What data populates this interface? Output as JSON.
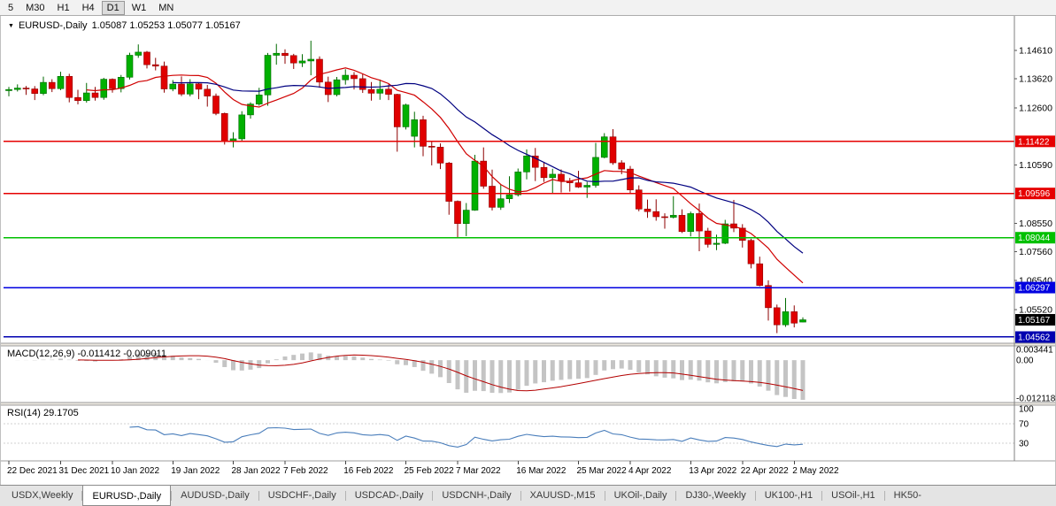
{
  "toolbar": {
    "timeframes": [
      "5",
      "M30",
      "H1",
      "H4",
      "D1",
      "W1",
      "MN"
    ],
    "active": "D1"
  },
  "chart": {
    "title_symbol": "EURUSD-,Daily",
    "title_ohlc": "1.05087 1.05253 1.05077 1.05167"
  },
  "indicators": {
    "macd": {
      "label": "MACD(12,26,9) -0.011412 -0.009011"
    },
    "rsi": {
      "label": "RSI(14) 29.1705"
    }
  },
  "tabs": [
    {
      "label": "USDX,Weekly",
      "active": false
    },
    {
      "label": "EURUSD-,Daily",
      "active": true
    },
    {
      "label": "AUDUSD-,Daily",
      "active": false
    },
    {
      "label": "USDCHF-,Daily",
      "active": false
    },
    {
      "label": "USDCAD-,Daily",
      "active": false
    },
    {
      "label": "USDCNH-,Daily",
      "active": false
    },
    {
      "label": "XAUUSD-,M15",
      "active": false
    },
    {
      "label": "UKOil-,Daily",
      "active": false
    },
    {
      "label": "DJ30-,Weekly",
      "active": false
    },
    {
      "label": "UK100-,H1",
      "active": false
    },
    {
      "label": "USOil-,H1",
      "active": false
    },
    {
      "label": "HK50-",
      "active": false
    }
  ],
  "chart_data": {
    "type": "candlestick",
    "symbol": "EURUSD-,Daily",
    "timeframe": "Daily",
    "ohlc_current": {
      "open": 1.05087,
      "high": 1.05253,
      "low": 1.05077,
      "close": 1.05167
    },
    "candle_colors": {
      "bull": "#00b000",
      "bull_border": "#006a00",
      "bear": "#e00000",
      "bear_border": "#8e0000"
    },
    "candles": [
      [
        1.132,
        1.1333,
        1.13,
        1.1324
      ],
      [
        1.1324,
        1.1342,
        1.1317,
        1.1329
      ],
      [
        1.1329,
        1.1336,
        1.1305,
        1.1326
      ],
      [
        1.1326,
        1.1336,
        1.1287,
        1.131
      ],
      [
        1.131,
        1.1369,
        1.1304,
        1.1349
      ],
      [
        1.1349,
        1.136,
        1.1315,
        1.1327
      ],
      [
        1.1327,
        1.1386,
        1.1322,
        1.137
      ],
      [
        1.137,
        1.1379,
        1.1279,
        1.1296
      ],
      [
        1.1296,
        1.1323,
        1.1272,
        1.1285
      ],
      [
        1.1285,
        1.1347,
        1.1278,
        1.1312
      ],
      [
        1.1312,
        1.1333,
        1.1285,
        1.1296
      ],
      [
        1.1296,
        1.1365,
        1.1288,
        1.136
      ],
      [
        1.136,
        1.1363,
        1.1313,
        1.1327
      ],
      [
        1.1327,
        1.1375,
        1.1314,
        1.1367
      ],
      [
        1.1367,
        1.1453,
        1.1359,
        1.1444
      ],
      [
        1.1444,
        1.1482,
        1.1435,
        1.1455
      ],
      [
        1.1455,
        1.1459,
        1.1398,
        1.1411
      ],
      [
        1.1411,
        1.1435,
        1.1391,
        1.1406
      ],
      [
        1.1406,
        1.1422,
        1.1313,
        1.1326
      ],
      [
        1.1326,
        1.1357,
        1.1318,
        1.1343
      ],
      [
        1.1343,
        1.137,
        1.1301,
        1.1308
      ],
      [
        1.1308,
        1.136,
        1.13,
        1.1344
      ],
      [
        1.1344,
        1.1349,
        1.129,
        1.1325
      ],
      [
        1.1325,
        1.134,
        1.1264,
        1.1301
      ],
      [
        1.1301,
        1.131,
        1.1234,
        1.124
      ],
      [
        1.124,
        1.1243,
        1.1131,
        1.1144
      ],
      [
        1.1144,
        1.1174,
        1.1121,
        1.1151
      ],
      [
        1.1151,
        1.1248,
        1.1141,
        1.1235
      ],
      [
        1.1235,
        1.1279,
        1.1222,
        1.1273
      ],
      [
        1.1273,
        1.133,
        1.1267,
        1.1305
      ],
      [
        1.1305,
        1.1452,
        1.1267,
        1.1444
      ],
      [
        1.1444,
        1.1484,
        1.1411,
        1.1451
      ],
      [
        1.1451,
        1.1465,
        1.1414,
        1.1443
      ],
      [
        1.1443,
        1.1449,
        1.1396,
        1.1417
      ],
      [
        1.1417,
        1.1448,
        1.1403,
        1.1424
      ],
      [
        1.1424,
        1.1495,
        1.1374,
        1.143
      ],
      [
        1.143,
        1.144,
        1.133,
        1.135
      ],
      [
        1.135,
        1.1369,
        1.128,
        1.1306
      ],
      [
        1.1306,
        1.1368,
        1.13,
        1.1358
      ],
      [
        1.1358,
        1.1395,
        1.1341,
        1.1374
      ],
      [
        1.1374,
        1.1385,
        1.1324,
        1.1362
      ],
      [
        1.1362,
        1.138,
        1.1312,
        1.1324
      ],
      [
        1.1324,
        1.135,
        1.1285,
        1.1311
      ],
      [
        1.1311,
        1.1359,
        1.1288,
        1.1325
      ],
      [
        1.1325,
        1.1342,
        1.1287,
        1.1307
      ],
      [
        1.1307,
        1.1309,
        1.1106,
        1.1193
      ],
      [
        1.1193,
        1.1274,
        1.1184,
        1.127
      ],
      [
        1.116,
        1.1246,
        1.1121,
        1.1218
      ],
      [
        1.1218,
        1.1232,
        1.109,
        1.1125
      ],
      [
        1.1125,
        1.1144,
        1.1058,
        1.1122
      ],
      [
        1.1122,
        1.1135,
        1.1045,
        1.1066
      ],
      [
        1.1066,
        1.107,
        1.0885,
        1.0932
      ],
      [
        1.0932,
        1.0935,
        1.0806,
        1.0854
      ],
      [
        1.0854,
        1.0926,
        1.081,
        1.0901
      ],
      [
        1.0901,
        1.1095,
        1.0899,
        1.1073
      ],
      [
        1.1073,
        1.1121,
        1.0976,
        1.0985
      ],
      [
        1.0985,
        1.1043,
        1.09,
        1.0911
      ],
      [
        1.0911,
        1.0991,
        1.0902,
        1.0941
      ],
      [
        1.0941,
        1.102,
        1.0926,
        1.0955
      ],
      [
        1.0955,
        1.1047,
        1.0949,
        1.1035
      ],
      [
        1.1035,
        1.1114,
        1.1009,
        1.1091
      ],
      [
        1.1091,
        1.1119,
        1.1003,
        1.1051
      ],
      [
        1.1051,
        1.1069,
        1.1,
        1.1015
      ],
      [
        1.1015,
        1.1046,
        1.0961,
        1.1027
      ],
      [
        1.1027,
        1.1044,
        1.0963,
        1.1003
      ],
      [
        1.1003,
        1.1014,
        1.0966,
        1.0997
      ],
      [
        1.0997,
        1.1039,
        1.0979,
        1.0982
      ],
      [
        1.0982,
        1.1,
        1.0944,
        1.0988
      ],
      [
        1.0988,
        1.1137,
        1.098,
        1.1086
      ],
      [
        1.1086,
        1.1171,
        1.1083,
        1.1158
      ],
      [
        1.1158,
        1.1185,
        1.106,
        1.1067
      ],
      [
        1.1067,
        1.1076,
        1.1027,
        1.1045
      ],
      [
        1.1045,
        1.1056,
        1.096,
        1.0972
      ],
      [
        1.0972,
        1.0988,
        1.0897,
        1.0905
      ],
      [
        1.0905,
        1.0938,
        1.0874,
        1.0896
      ],
      [
        1.0896,
        1.0939,
        1.0864,
        1.0878
      ],
      [
        1.0878,
        1.089,
        1.0836,
        1.0876
      ],
      [
        1.0876,
        1.095,
        1.0872,
        1.0883
      ],
      [
        1.0883,
        1.0904,
        1.0821,
        1.0826
      ],
      [
        1.0826,
        1.0896,
        1.0809,
        1.0889
      ],
      [
        1.0889,
        1.0924,
        1.0757,
        1.0828
      ],
      [
        1.0828,
        1.0839,
        1.077,
        1.0781
      ],
      [
        1.0781,
        1.0815,
        1.0761,
        1.0785
      ],
      [
        1.0785,
        1.0867,
        1.0782,
        1.0853
      ],
      [
        1.0853,
        1.0937,
        1.0824,
        1.0838
      ],
      [
        1.0838,
        1.0852,
        1.077,
        1.0795
      ],
      [
        1.0795,
        1.0801,
        1.0697,
        1.0713
      ],
      [
        1.0713,
        1.0738,
        1.0634,
        1.0637
      ],
      [
        1.0637,
        1.0655,
        1.0514,
        1.0559
      ],
      [
        1.0559,
        1.057,
        1.047,
        1.0499
      ],
      [
        1.0499,
        1.0593,
        1.0492,
        1.0545
      ],
      [
        1.0545,
        1.0567,
        1.049,
        1.0505
      ],
      [
        1.05087,
        1.05253,
        1.05077,
        1.05167
      ]
    ],
    "date_ticks": [
      {
        "label": "22 Dec 2021",
        "i": 0
      },
      {
        "label": "31 Dec 2021",
        "i": 6
      },
      {
        "label": "10 Jan 2022",
        "i": 12
      },
      {
        "label": "19 Jan 2022",
        "i": 19
      },
      {
        "label": "28 Jan 2022",
        "i": 26
      },
      {
        "label": "7 Feb 2022",
        "i": 32
      },
      {
        "label": "16 Feb 2022",
        "i": 39
      },
      {
        "label": "25 Feb 2022",
        "i": 46
      },
      {
        "label": "7 Mar 2022",
        "i": 52
      },
      {
        "label": "16 Mar 2022",
        "i": 59
      },
      {
        "label": "25 Mar 2022",
        "i": 66
      },
      {
        "label": "4 Apr 2022",
        "i": 72
      },
      {
        "label": "13 Apr 2022",
        "i": 79
      },
      {
        "label": "22 Apr 2022",
        "i": 85
      },
      {
        "label": "2 May 2022",
        "i": 91
      }
    ],
    "price_axis_ticks": [
      1.1461,
      1.1362,
      1.126,
      1.1059,
      1.0855,
      1.0756,
      1.0654,
      1.0552
    ],
    "levels": [
      {
        "price": 1.11422,
        "color": "#e60000"
      },
      {
        "price": 1.09596,
        "color": "#e60000"
      },
      {
        "price": 1.08044,
        "color": "#00c000"
      },
      {
        "price": 1.06297,
        "color": "#0000e0"
      },
      {
        "price": 1.04562,
        "color": "#0000b0"
      }
    ],
    "current_price": {
      "value": 1.05167,
      "badge_color": "#000000"
    },
    "moving_averages": [
      {
        "type": "sma",
        "period": 10,
        "color": "#d00000"
      },
      {
        "type": "sma",
        "period": 20,
        "color": "#000080"
      }
    ],
    "macd": {
      "params": [
        12,
        26,
        9
      ],
      "macd_value": -0.011412,
      "signal_value": -0.009011,
      "axis_values": [
        0.003441,
        0,
        -0.012118
      ],
      "axis_labels": [
        "0.003441",
        "0.00",
        "-0.012118"
      ],
      "bar_color": "#c4c4c4",
      "signal_color": "#b30000"
    },
    "rsi": {
      "period": 14,
      "value": 29.1705,
      "axis_values": [
        100,
        70,
        30
      ],
      "levels": [
        70,
        30
      ],
      "color": "#4a7ebb"
    }
  }
}
